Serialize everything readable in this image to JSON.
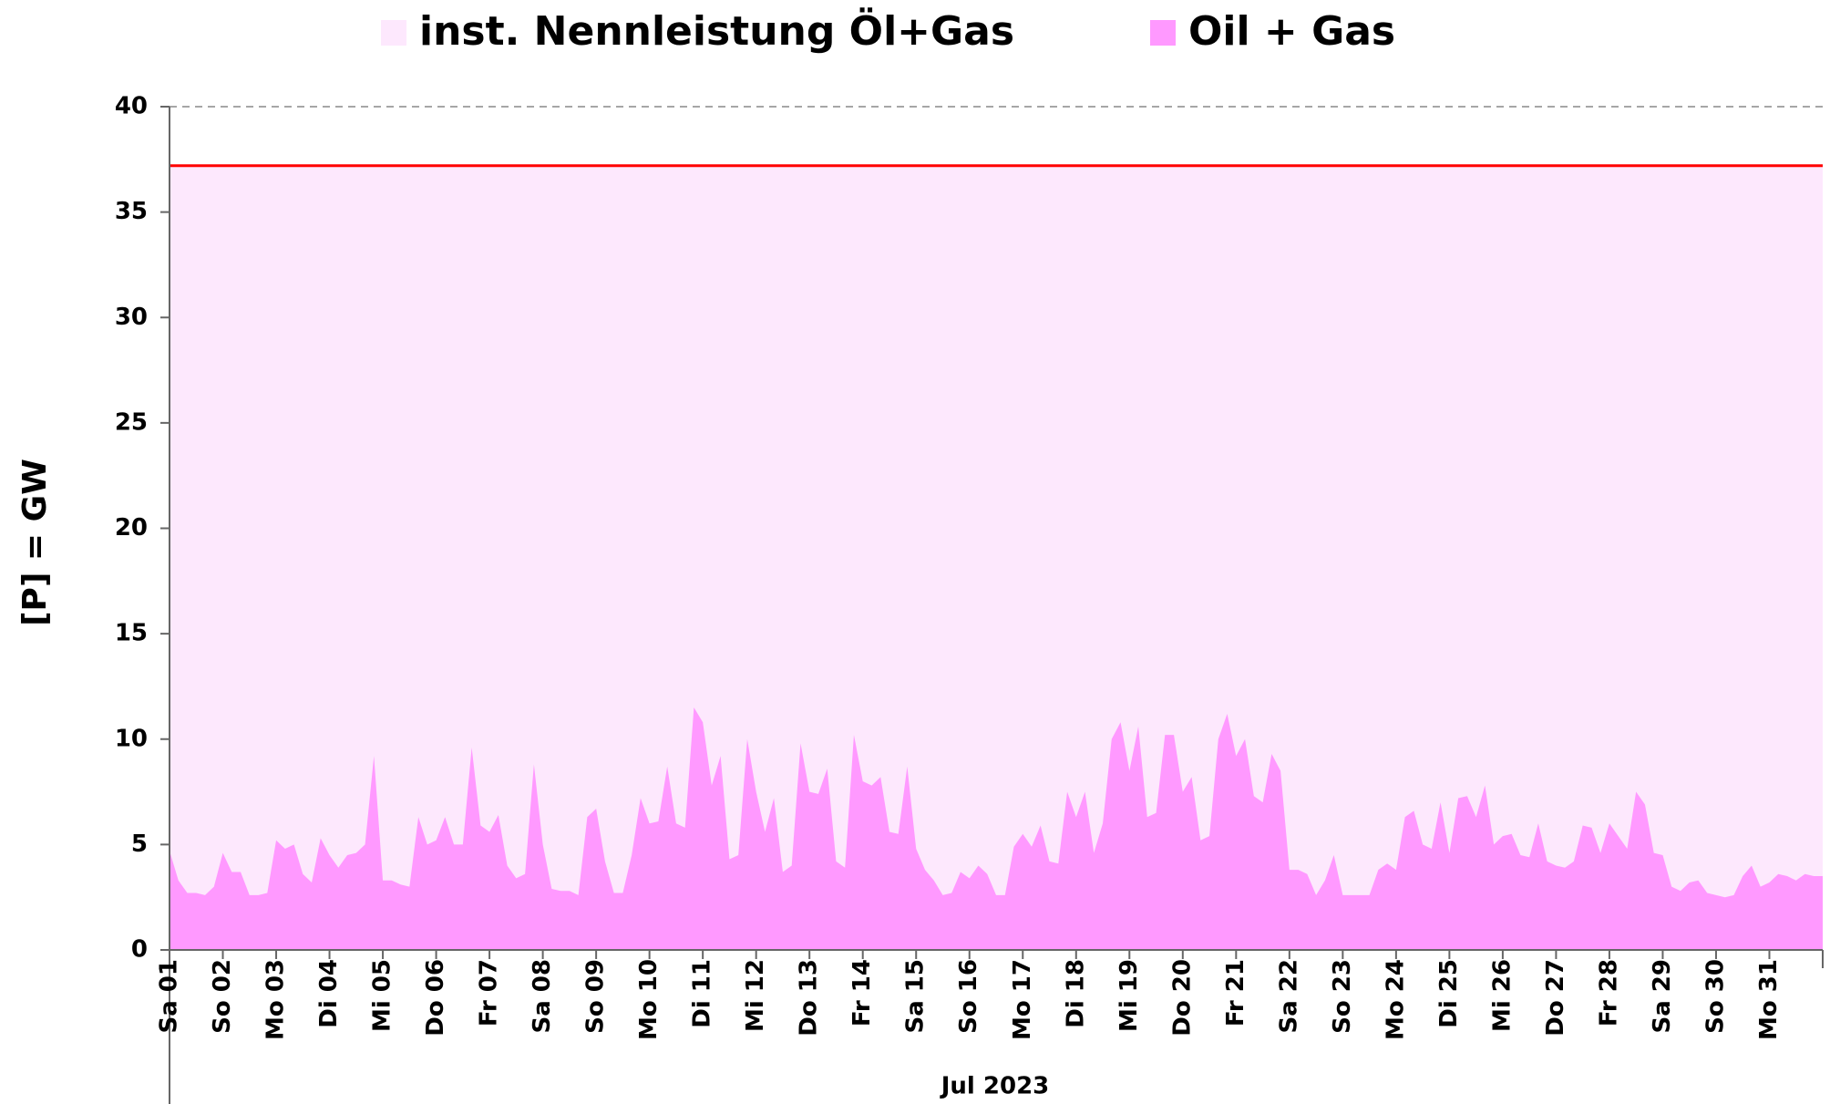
{
  "chart_data": {
    "type": "area",
    "legend_labels_note_free": null,
    "y_label": "[P]  = GW",
    "x_group_label": "Jul 2023",
    "legend": "top",
    "grid": true,
    "xlim": [
      0,
      744
    ],
    "ylim": [
      0,
      40
    ],
    "yticks": [
      0,
      5,
      10,
      15,
      20,
      25,
      30,
      35,
      40
    ],
    "xticks": [
      {
        "value": 0,
        "label": "Sa 01"
      },
      {
        "value": 24,
        "label": "So 02"
      },
      {
        "value": 48,
        "label": "Mo 03"
      },
      {
        "value": 72,
        "label": "Di 04"
      },
      {
        "value": 96,
        "label": "Mi 05"
      },
      {
        "value": 120,
        "label": "Do 06"
      },
      {
        "value": 144,
        "label": "Fr 07"
      },
      {
        "value": 168,
        "label": "Sa 08"
      },
      {
        "value": 192,
        "label": "So 09"
      },
      {
        "value": 216,
        "label": "Mo 10"
      },
      {
        "value": 240,
        "label": "Di 11"
      },
      {
        "value": 264,
        "label": "Mi 12"
      },
      {
        "value": 288,
        "label": "Do 13"
      },
      {
        "value": 312,
        "label": "Fr 14"
      },
      {
        "value": 336,
        "label": "Sa 15"
      },
      {
        "value": 360,
        "label": "So 16"
      },
      {
        "value": 384,
        "label": "Mo 17"
      },
      {
        "value": 408,
        "label": "Di 18"
      },
      {
        "value": 432,
        "label": "Mi 19"
      },
      {
        "value": 456,
        "label": "Do 20"
      },
      {
        "value": 480,
        "label": "Fr 21"
      },
      {
        "value": 504,
        "label": "Sa 22"
      },
      {
        "value": 528,
        "label": "So 23"
      },
      {
        "value": 552,
        "label": "Mo 24"
      },
      {
        "value": 576,
        "label": "Di 25"
      },
      {
        "value": 600,
        "label": "Mi 26"
      },
      {
        "value": 624,
        "label": "Do 27"
      },
      {
        "value": 648,
        "label": "Fr 28"
      },
      {
        "value": 672,
        "label": "Sa 29"
      },
      {
        "value": 696,
        "label": "So 30"
      },
      {
        "value": 720,
        "label": "Mo 31"
      }
    ],
    "series": [
      {
        "name": "inst. Nennleistung Öl+Gas",
        "color": "#fde8fd",
        "line_color": "#ff0000",
        "x": [
          0,
          744
        ],
        "values": [
          37.2,
          37.2
        ]
      },
      {
        "name": "Oil + Gas",
        "color": "#ff99ff",
        "x": [
          0,
          4,
          8,
          12,
          16,
          20,
          24,
          28,
          32,
          36,
          40,
          44,
          48,
          52,
          56,
          60,
          64,
          68,
          72,
          76,
          80,
          84,
          88,
          92,
          96,
          100,
          104,
          108,
          112,
          116,
          120,
          124,
          128,
          132,
          136,
          140,
          144,
          148,
          152,
          156,
          160,
          164,
          168,
          172,
          176,
          180,
          184,
          188,
          192,
          196,
          200,
          204,
          208,
          212,
          216,
          220,
          224,
          228,
          232,
          236,
          240,
          244,
          248,
          252,
          256,
          260,
          264,
          268,
          272,
          276,
          280,
          284,
          288,
          292,
          296,
          300,
          304,
          308,
          312,
          316,
          320,
          324,
          328,
          332,
          336,
          340,
          344,
          348,
          352,
          356,
          360,
          364,
          368,
          372,
          376,
          380,
          384,
          388,
          392,
          396,
          400,
          404,
          408,
          412,
          416,
          420,
          424,
          428,
          432,
          436,
          440,
          444,
          448,
          452,
          456,
          460,
          464,
          468,
          472,
          476,
          480,
          484,
          488,
          492,
          496,
          500,
          504,
          508,
          512,
          516,
          520,
          524,
          528,
          532,
          536,
          540,
          544,
          548,
          552,
          556,
          560,
          564,
          568,
          572,
          576,
          580,
          584,
          588,
          592,
          596,
          600,
          604,
          608,
          612,
          616,
          620,
          624,
          628,
          632,
          636,
          640,
          644,
          648,
          652,
          656,
          660,
          664,
          668,
          672,
          676,
          680,
          684,
          688,
          692,
          696,
          700,
          704,
          708,
          712,
          716,
          720,
          724,
          728,
          732,
          736,
          740,
          744
        ],
        "values": [
          4.7,
          3.3,
          2.7,
          2.7,
          2.6,
          3.0,
          4.6,
          3.7,
          3.7,
          2.6,
          2.6,
          2.7,
          5.2,
          4.8,
          5.0,
          3.6,
          3.2,
          5.3,
          4.5,
          3.9,
          4.5,
          4.6,
          5.0,
          9.2,
          3.3,
          3.3,
          3.1,
          3.0,
          6.3,
          5.0,
          5.2,
          6.3,
          5.0,
          5.0,
          9.6,
          5.9,
          5.6,
          6.4,
          4.0,
          3.4,
          3.6,
          8.8,
          5.0,
          2.9,
          2.8,
          2.8,
          2.6,
          6.3,
          6.7,
          4.2,
          2.7,
          2.7,
          4.5,
          7.2,
          6.0,
          6.1,
          8.7,
          6.0,
          5.8,
          11.5,
          10.8,
          7.8,
          9.2,
          4.3,
          4.5,
          10.0,
          7.5,
          5.6,
          7.2,
          3.7,
          4.0,
          9.8,
          7.5,
          7.4,
          8.6,
          4.2,
          3.9,
          10.2,
          8.0,
          7.8,
          8.2,
          5.6,
          5.5,
          8.7,
          4.8,
          3.8,
          3.3,
          2.6,
          2.7,
          3.7,
          3.4,
          4.0,
          3.6,
          2.6,
          2.6,
          4.9,
          5.5,
          4.9,
          5.9,
          4.2,
          4.1,
          7.5,
          6.3,
          7.5,
          4.6,
          6.0,
          10.0,
          10.8,
          8.5,
          10.6,
          6.3,
          6.5,
          10.2,
          10.2,
          7.5,
          8.2,
          5.2,
          5.4,
          10.0,
          11.2,
          9.2,
          10.0,
          7.3,
          7.0,
          9.3,
          8.5,
          3.8,
          3.8,
          3.6,
          2.6,
          3.3,
          4.5,
          2.6,
          2.6,
          2.6,
          2.6,
          3.8,
          4.1,
          3.8,
          6.3,
          6.6,
          5.0,
          4.8,
          7.0,
          4.6,
          7.2,
          7.3,
          6.3,
          7.8,
          5.0,
          5.4,
          5.5,
          4.5,
          4.4,
          6.0,
          4.2,
          4.0,
          3.9,
          4.2,
          5.9,
          5.8,
          4.6,
          6.0,
          5.4,
          4.8,
          7.5,
          6.9,
          4.6,
          4.5,
          3.0,
          2.8,
          3.2,
          3.3,
          2.7,
          2.6,
          2.5,
          2.6,
          3.5,
          4.0,
          3.0,
          3.2,
          3.6,
          3.5,
          3.3,
          3.6,
          3.5,
          3.5
        ]
      }
    ]
  }
}
